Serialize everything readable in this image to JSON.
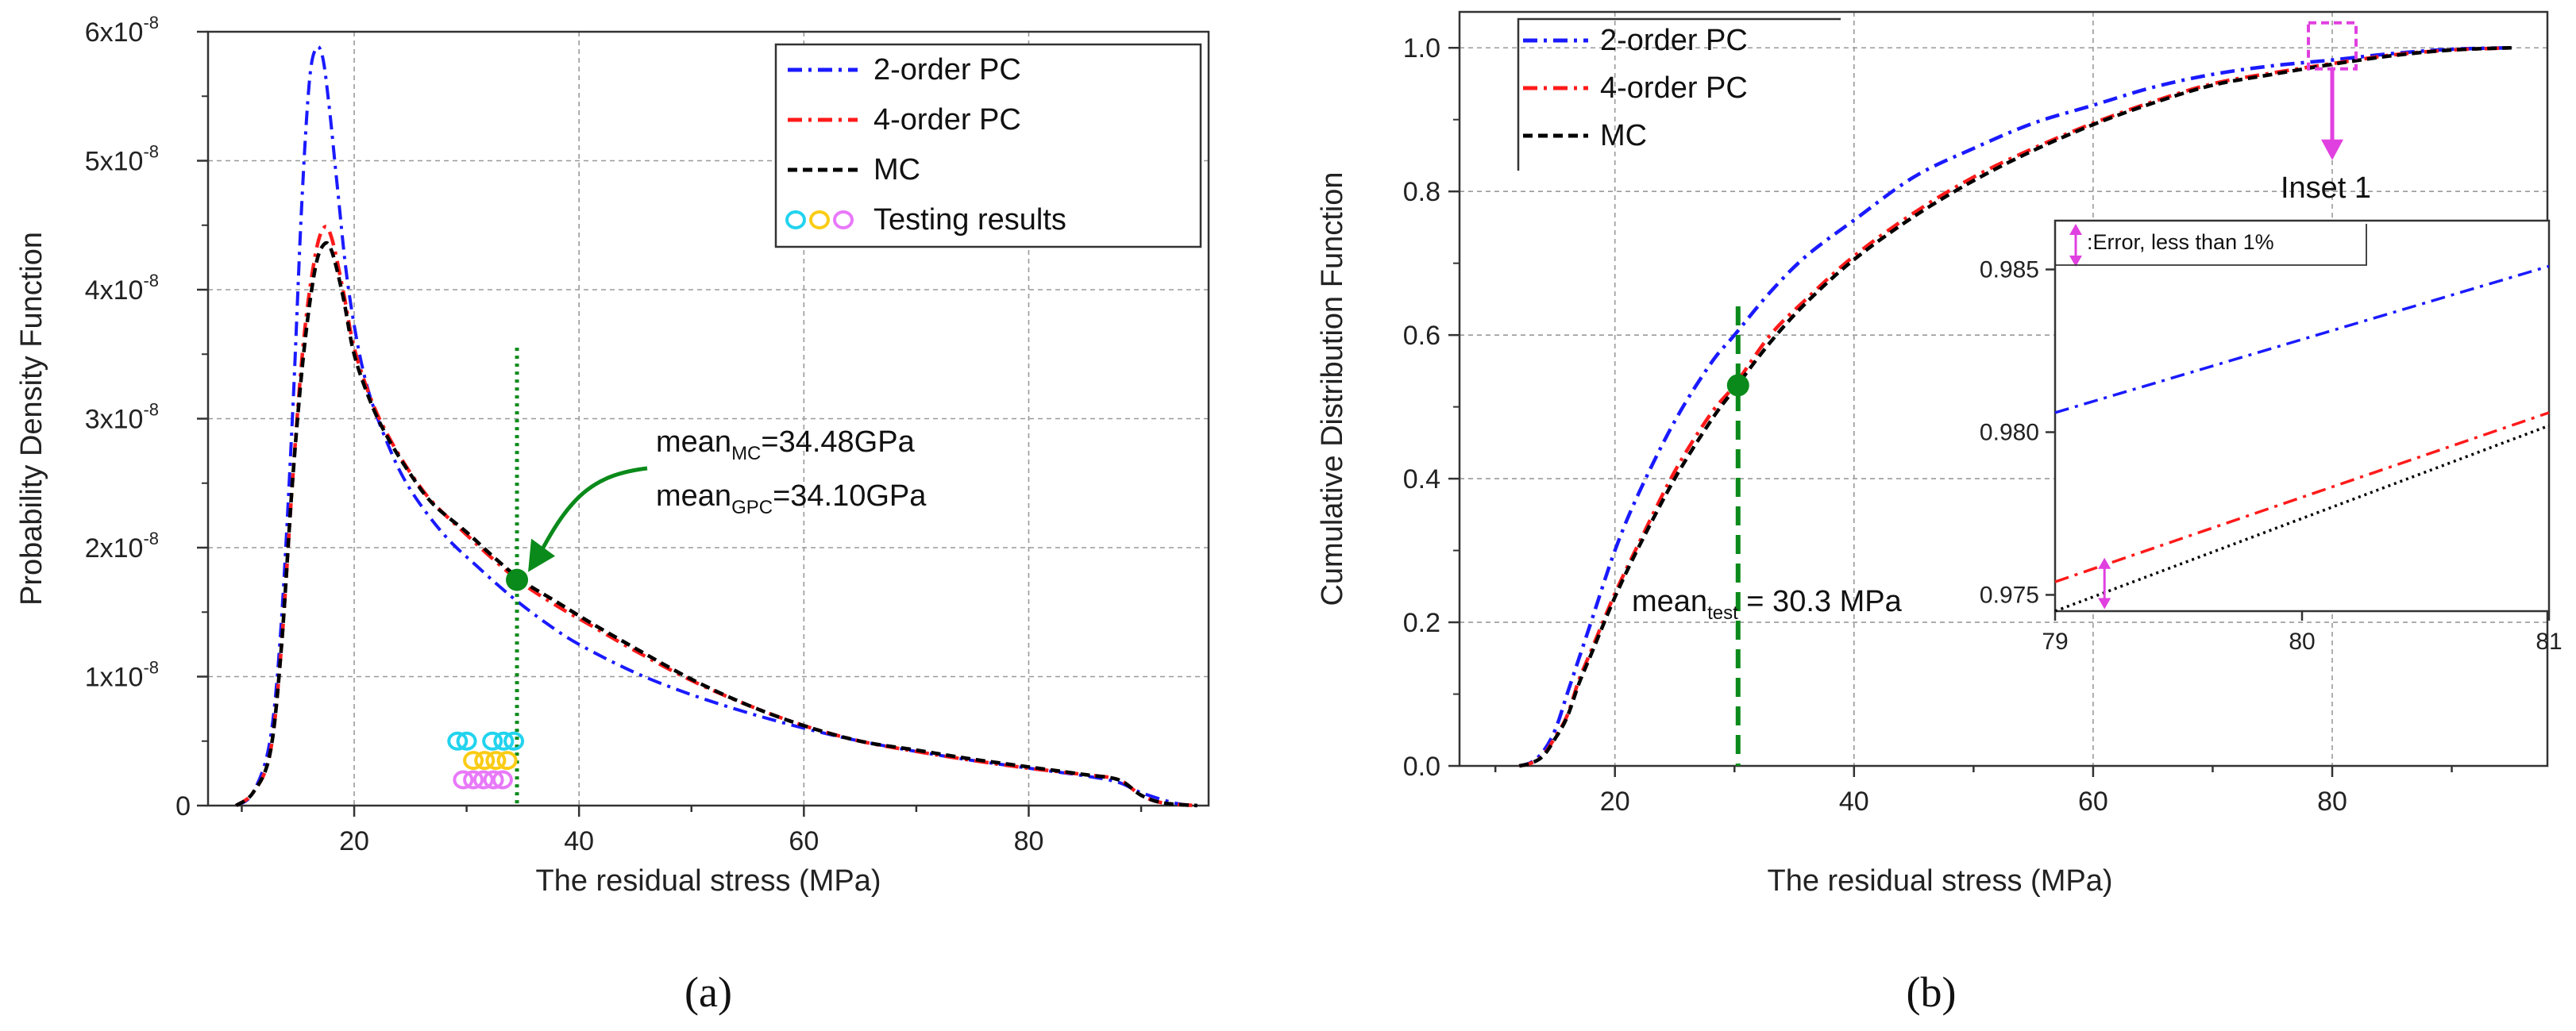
{
  "chart_data": [
    {
      "type": "line",
      "id": "a",
      "caption": "(a)",
      "xlabel": "The residual stress (MPa)",
      "ylabel": "Probability Density Function",
      "xlim": [
        7,
        96
      ],
      "ylim": [
        0,
        6e-08
      ],
      "xticks": [
        20,
        40,
        60,
        80
      ],
      "yticks": [
        {
          "v": 0,
          "label": "0",
          "exp": ""
        },
        {
          "v": 1e-08,
          "label": "1x10",
          "exp": "-8"
        },
        {
          "v": 2e-08,
          "label": "2x10",
          "exp": "-8"
        },
        {
          "v": 3e-08,
          "label": "3x10",
          "exp": "-8"
        },
        {
          "v": 4e-08,
          "label": "4x10",
          "exp": "-8"
        },
        {
          "v": 5e-08,
          "label": "5x10",
          "exp": "-8"
        },
        {
          "v": 6e-08,
          "label": "6x10",
          "exp": "-8"
        }
      ],
      "legend": [
        {
          "label": "2-order PC",
          "color": "#1a1aff",
          "style": "dashdot"
        },
        {
          "label": "4-order PC",
          "color": "#ff1a1a",
          "style": "dashdot"
        },
        {
          "label": "MC",
          "color": "#000000",
          "style": "dashed"
        },
        {
          "label": "Testing results",
          "colors": [
            "#22d3ee",
            "#facc15",
            "#e879f9"
          ],
          "style": "circles"
        }
      ],
      "series": [
        {
          "name": "2-order PC",
          "color": "#1a1aff",
          "style": "dashdot",
          "x": [
            9.5,
            11,
            12.5,
            13.5,
            14.5,
            15.3,
            16,
            16.6,
            17.2,
            17.8,
            18.5,
            19.5,
            21,
            23,
            25,
            28,
            31,
            34,
            37,
            40,
            45,
            50,
            55,
            60,
            65,
            70,
            75,
            80,
            85,
            88,
            90,
            93,
            95
          ],
          "y": [
            0,
            1e-09,
            5e-09,
            1.4e-08,
            3e-08,
            4.6e-08,
            5.6e-08,
            5.87e-08,
            5.8e-08,
            5.4e-08,
            4.8e-08,
            4e-08,
            3.3e-08,
            2.8e-08,
            2.45e-08,
            2.1e-08,
            1.85e-08,
            1.62e-08,
            1.42e-08,
            1.25e-08,
            1.03e-08,
            8.6e-09,
            7.2e-09,
            6e-09,
            5e-09,
            4.2e-09,
            3.5e-09,
            2.9e-09,
            2.3e-09,
            1.8e-09,
            1e-09,
            2e-10,
            0
          ]
        },
        {
          "name": "4-order PC",
          "color": "#ff1a1a",
          "style": "dashdot",
          "x": [
            9.5,
            11,
            12.5,
            13.5,
            14.5,
            15.5,
            16.5,
            17.3,
            18,
            19,
            20,
            21.5,
            23,
            25,
            27,
            30,
            32.5,
            35,
            38,
            41,
            45,
            50,
            55,
            60,
            65,
            70,
            75,
            80,
            85,
            88,
            90,
            92,
            95
          ],
          "y": [
            0,
            1e-09,
            4e-09,
            1.2e-08,
            2.5e-08,
            3.6e-08,
            4.25e-08,
            4.48e-08,
            4.4e-08,
            4e-08,
            3.55e-08,
            3.15e-08,
            2.87e-08,
            2.58e-08,
            2.35e-08,
            2.1e-08,
            1.9e-08,
            1.72e-08,
            1.55e-08,
            1.4e-08,
            1.2e-08,
            9.7e-09,
            7.8e-09,
            6.2e-09,
            5e-09,
            4.2e-09,
            3.5e-09,
            2.9e-09,
            2.4e-09,
            2e-09,
            8e-10,
            2e-10,
            0
          ]
        },
        {
          "name": "MC",
          "color": "#000000",
          "style": "dashed",
          "x": [
            9.5,
            11,
            12.5,
            13.5,
            14.5,
            15.5,
            16.5,
            17.3,
            18,
            19,
            20,
            21.5,
            23,
            25,
            27,
            30,
            32.5,
            35,
            38,
            41,
            45,
            50,
            55,
            60,
            65,
            70,
            75,
            80,
            85,
            88,
            90,
            92,
            95
          ],
          "y": [
            0,
            1e-09,
            4e-09,
            1.2e-08,
            2.5e-08,
            3.5e-08,
            4.15e-08,
            4.35e-08,
            4.3e-08,
            3.95e-08,
            3.5e-08,
            3.12e-08,
            2.85e-08,
            2.57e-08,
            2.34e-08,
            2.12e-08,
            1.92e-08,
            1.74e-08,
            1.58e-08,
            1.42e-08,
            1.22e-08,
            9.8e-09,
            7.8e-09,
            6.2e-09,
            5e-09,
            4.3e-09,
            3.6e-09,
            3e-09,
            2.4e-09,
            2e-09,
            8e-10,
            2e-10,
            0
          ]
        }
      ],
      "testing_results": [
        {
          "color": "#22d3ee",
          "y": 5e-09,
          "x": [
            29.2,
            30.0,
            32.3,
            33.3,
            34.2
          ]
        },
        {
          "color": "#facc15",
          "y": 3.5e-09,
          "x": [
            30.6,
            31.6,
            32.6,
            33.6
          ]
        },
        {
          "color": "#e879f9",
          "y": 2e-09,
          "x": [
            29.7,
            30.6,
            31.5,
            32.4,
            33.2
          ]
        }
      ],
      "mean_marker": {
        "x": 34.48,
        "y": 1.75e-08,
        "color": "#0a8a1a"
      },
      "annotations": [
        {
          "base": "mean",
          "sub": "MC",
          "rest": "=34.48GPa"
        },
        {
          "base": "mean",
          "sub": "GPC",
          "rest": "=34.10GPa"
        }
      ]
    },
    {
      "type": "line",
      "id": "b",
      "caption": "(b)",
      "xlabel": "The residual stress (MPa)",
      "ylabel": "Cumulative Distribution Function",
      "xlim": [
        7,
        98
      ],
      "ylim": [
        0,
        1.05
      ],
      "xticks": [
        20,
        40,
        60,
        80
      ],
      "yticks": [
        {
          "v": 0,
          "label": "0.0"
        },
        {
          "v": 0.2,
          "label": "0.2"
        },
        {
          "v": 0.4,
          "label": "0.4"
        },
        {
          "v": 0.6,
          "label": "0.6"
        },
        {
          "v": 0.8,
          "label": "0.8"
        },
        {
          "v": 1.0,
          "label": "1.0"
        }
      ],
      "legend": [
        {
          "label": "2-order PC",
          "color": "#1a1aff",
          "style": "dashdot"
        },
        {
          "label": "4-order PC",
          "color": "#ff1a1a",
          "style": "dashdot"
        },
        {
          "label": "MC",
          "color": "#000000",
          "style": "dashed"
        }
      ],
      "series": [
        {
          "name": "2-order PC",
          "color": "#1a1aff",
          "style": "dashdot",
          "x": [
            12,
            13,
            14,
            15,
            16,
            17,
            18,
            20,
            22,
            25,
            28,
            30,
            33,
            36,
            40,
            45,
            50,
            55,
            60,
            65,
            70,
            75,
            80,
            85,
            90,
            95
          ],
          "y": [
            0,
            0.005,
            0.02,
            0.05,
            0.1,
            0.15,
            0.2,
            0.3,
            0.38,
            0.48,
            0.56,
            0.6,
            0.66,
            0.71,
            0.76,
            0.82,
            0.86,
            0.895,
            0.92,
            0.945,
            0.963,
            0.975,
            0.983,
            0.992,
            0.998,
            1.0
          ]
        },
        {
          "name": "4-order PC",
          "color": "#ff1a1a",
          "style": "dashdot",
          "x": [
            12,
            13,
            14,
            15,
            16,
            17,
            18,
            20,
            22,
            25,
            28,
            30,
            33,
            36,
            40,
            45,
            50,
            55,
            60,
            65,
            70,
            75,
            80,
            85,
            90,
            95
          ],
          "y": [
            0,
            0.004,
            0.015,
            0.04,
            0.07,
            0.12,
            0.16,
            0.24,
            0.31,
            0.41,
            0.49,
            0.53,
            0.6,
            0.65,
            0.71,
            0.77,
            0.82,
            0.86,
            0.895,
            0.925,
            0.95,
            0.965,
            0.978,
            0.99,
            0.997,
            1.0
          ]
        },
        {
          "name": "MC",
          "color": "#000000",
          "style": "dashed",
          "x": [
            12,
            13,
            14,
            15,
            16,
            17,
            18,
            20,
            22,
            25,
            28,
            30,
            33,
            36,
            40,
            45,
            50,
            55,
            60,
            65,
            70,
            75,
            80,
            85,
            90,
            95
          ],
          "y": [
            0,
            0.004,
            0.014,
            0.038,
            0.068,
            0.115,
            0.155,
            0.235,
            0.305,
            0.4,
            0.48,
            0.525,
            0.59,
            0.645,
            0.705,
            0.765,
            0.815,
            0.857,
            0.893,
            0.923,
            0.948,
            0.963,
            0.977,
            0.989,
            0.997,
            1.0
          ]
        }
      ],
      "mean_marker": {
        "x": 30.3,
        "y": 0.53,
        "color": "#0a8a1a"
      },
      "annotation": {
        "base": "mean",
        "sub": "test",
        "rest": " = 30.3 MPa"
      },
      "inset_pointer": {
        "label": "Inset 1",
        "color": "#e040e0",
        "x": 80,
        "y": 0.985
      },
      "inset": {
        "xlim": [
          79,
          81
        ],
        "ylim": [
          0.9745,
          0.9865
        ],
        "xticks": [
          {
            "v": 79,
            "label": "79"
          },
          {
            "v": 80,
            "label": "80"
          },
          {
            "v": 81,
            "label": "81"
          }
        ],
        "yticks": [
          {
            "v": 0.975,
            "label": "0.975"
          },
          {
            "v": 0.98,
            "label": "0.980"
          },
          {
            "v": 0.985,
            "label": "0.985"
          }
        ],
        "note": ":Error, less than 1%",
        "series": [
          {
            "name": "2-order PC",
            "color": "#1a1aff",
            "style": "dashdot",
            "x": [
              79,
              81
            ],
            "y": [
              0.9806,
              0.9851
            ]
          },
          {
            "name": "4-order PC",
            "color": "#ff1a1a",
            "style": "dashdot",
            "x": [
              79,
              81
            ],
            "y": [
              0.9754,
              0.9806
            ]
          },
          {
            "name": "MC",
            "color": "#000000",
            "style": "dotted",
            "x": [
              79,
              81
            ],
            "y": [
              0.9745,
              0.9802
            ]
          }
        ],
        "error_arrow": {
          "x": 79.2,
          "y1": 0.975,
          "y2": 0.9757
        }
      }
    }
  ]
}
